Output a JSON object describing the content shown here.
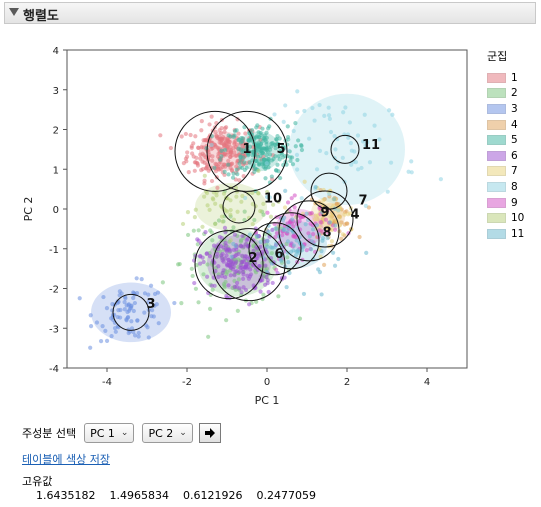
{
  "report": {
    "title": "행렬도"
  },
  "chart_data": {
    "type": "scatter",
    "xlabel": "PC 1",
    "ylabel": "PC 2",
    "xlim": [
      -5,
      5
    ],
    "ylim": [
      -4,
      4
    ],
    "x_ticks": [
      "-4",
      "-2",
      "0",
      "2",
      "4"
    ],
    "y_ticks": [
      "4",
      "3",
      "2",
      "1",
      "0",
      "-1",
      "-2",
      "-3",
      "-4"
    ],
    "legend": {
      "title": "군집",
      "placement": "right",
      "items": [
        "1",
        "2",
        "3",
        "4",
        "5",
        "6",
        "7",
        "8",
        "9",
        "10",
        "11"
      ]
    },
    "clusters": [
      {
        "label": "1",
        "color": "#e3757d",
        "center": [
          -1.1,
          1.45
        ],
        "spread": [
          0.45,
          0.35
        ],
        "n": 260,
        "ellipse": [
          0.6,
          0.5
        ]
      },
      {
        "label": "2",
        "color": "#7cc47d",
        "center": [
          -0.75,
          -1.35
        ],
        "spread": [
          0.7,
          0.55
        ],
        "n": 160,
        "ellipse": [
          1.0,
          0.85
        ]
      },
      {
        "label": "3",
        "color": "#6b8fe0",
        "center": [
          -3.4,
          -2.6
        ],
        "spread": [
          0.45,
          0.35
        ],
        "n": 90,
        "ellipse": [
          1.0,
          0.75
        ]
      },
      {
        "label": "4",
        "color": "#e0a35a",
        "center": [
          1.6,
          -0.2
        ],
        "spread": [
          0.3,
          0.3
        ],
        "n": 50,
        "ellipse": [
          0.35,
          0.35
        ]
      },
      {
        "label": "5",
        "color": "#3fb5a0",
        "center": [
          -0.2,
          1.45
        ],
        "spread": [
          0.45,
          0.35
        ],
        "n": 220,
        "ellipse": [
          0.55,
          0.5
        ]
      },
      {
        "label": "6",
        "color": "#9b50d1",
        "center": [
          -0.7,
          -1.35
        ],
        "spread": [
          0.5,
          0.4
        ],
        "n": 200,
        "ellipse": [
          0.8,
          0.7
        ]
      },
      {
        "label": "7",
        "color": "#e8d27a",
        "center": [
          1.5,
          -0.1
        ],
        "spread": [
          0.35,
          0.35
        ],
        "n": 50,
        "ellipse": [
          0.4,
          0.4
        ]
      },
      {
        "label": "8",
        "color": "#8fd3e3",
        "center": [
          2.0,
          1.5
        ],
        "spread": [
          0.9,
          0.7
        ],
        "n": 70,
        "ellipse": [
          1.45,
          1.4
        ]
      },
      {
        "label": "9",
        "color": "#d34fc4",
        "center": [
          0.8,
          -0.5
        ],
        "spread": [
          0.45,
          0.35
        ],
        "n": 80,
        "ellipse": [
          0.6,
          0.5
        ]
      },
      {
        "label": "10",
        "color": "#b6cf79",
        "center": [
          -0.9,
          0.05
        ],
        "spread": [
          0.6,
          0.35
        ],
        "n": 60,
        "ellipse": [
          0.9,
          0.6
        ]
      },
      {
        "label": "11",
        "color": "#6ab8cf",
        "center": [
          0.7,
          -0.9
        ],
        "spread": [
          0.6,
          0.5
        ],
        "n": 90,
        "ellipse": [
          0.8,
          0.6
        ]
      }
    ],
    "cluster_labels": [
      {
        "text": "1",
        "at": [
          -0.5,
          1.5
        ]
      },
      {
        "text": "5",
        "at": [
          0.35,
          1.5
        ]
      },
      {
        "text": "11",
        "at": [
          2.6,
          1.6
        ]
      },
      {
        "text": "10",
        "at": [
          0.15,
          0.25
        ]
      },
      {
        "text": "7",
        "at": [
          2.4,
          0.2
        ]
      },
      {
        "text": "9",
        "at": [
          1.45,
          -0.1
        ]
      },
      {
        "text": "4",
        "at": [
          2.2,
          -0.15
        ]
      },
      {
        "text": "8",
        "at": [
          1.5,
          -0.6
        ]
      },
      {
        "text": "6",
        "at": [
          0.3,
          -1.15
        ]
      },
      {
        "text": "2",
        "at": [
          -0.35,
          -1.25
        ]
      },
      {
        "text": "3",
        "at": [
          -2.9,
          -2.4
        ]
      }
    ],
    "circles": [
      {
        "at": [
          -1.3,
          1.45
        ],
        "r": 1.0
      },
      {
        "at": [
          -0.5,
          1.45
        ],
        "r": 1.0
      },
      {
        "at": [
          -0.7,
          0.05
        ],
        "r": 0.4
      },
      {
        "at": [
          1.55,
          0.45
        ],
        "r": 0.45
      },
      {
        "at": [
          1.95,
          1.5
        ],
        "r": 0.35
      },
      {
        "at": [
          1.45,
          -0.25
        ],
        "r": 0.7
      },
      {
        "at": [
          1.05,
          -0.55
        ],
        "r": 0.75
      },
      {
        "at": [
          0.6,
          -0.8
        ],
        "r": 0.7
      },
      {
        "at": [
          0.2,
          -1.0
        ],
        "r": 0.65
      },
      {
        "at": [
          -0.45,
          -1.4
        ],
        "r": 0.9
      },
      {
        "at": [
          -0.95,
          -1.4
        ],
        "r": 0.85
      },
      {
        "at": [
          -3.4,
          -2.6
        ],
        "r": 0.45
      }
    ]
  },
  "controls": {
    "pc_label": "주성분 선택",
    "select_x": "PC 1",
    "select_y": "PC 2",
    "save_link": "테이블에 색상 저장"
  },
  "eigen": {
    "title": "고유값",
    "values": [
      "1.6435182",
      "1.4965834",
      "0.6121926",
      "0.2477059"
    ]
  }
}
